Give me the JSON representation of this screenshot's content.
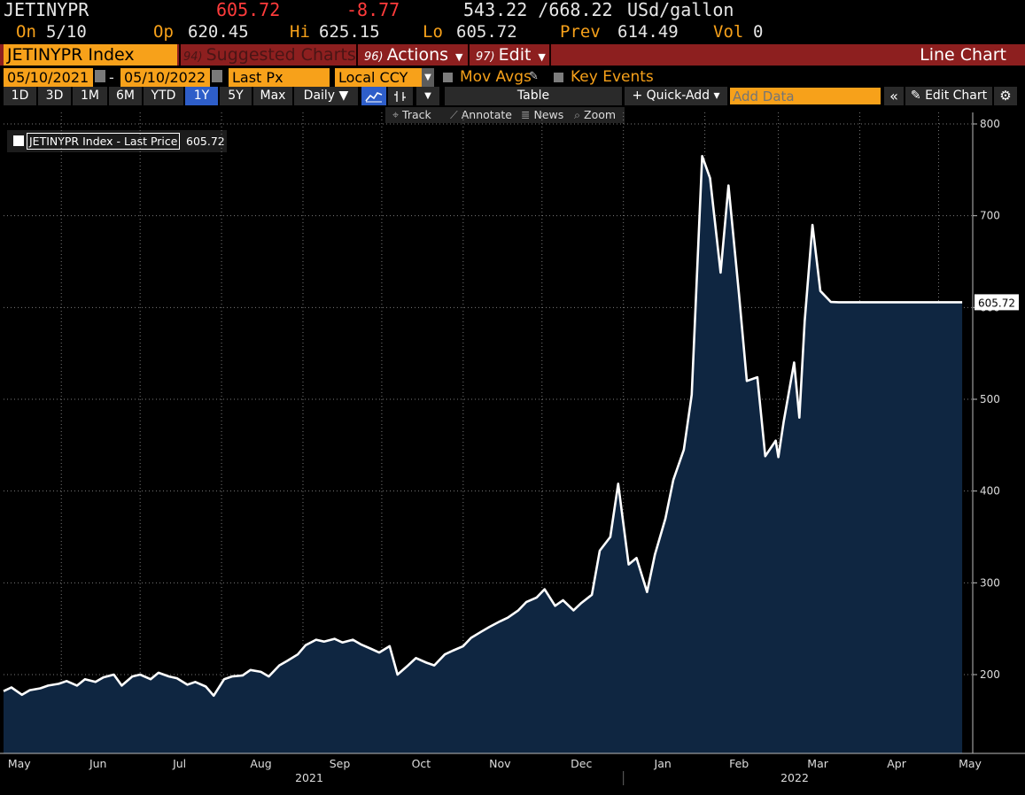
{
  "quote": {
    "ticker": "JETINYPR",
    "last": "605.72",
    "change": "-8.77",
    "range": "543.22 /668.22",
    "unit": "USd/gallon",
    "on_label": "On",
    "on_date": "5/10",
    "op_label": "Op",
    "op": "620.45",
    "hi_label": "Hi",
    "hi": "625.15",
    "lo_label": "Lo",
    "lo": "605.72",
    "prev_label": "Prev",
    "prev": "614.49",
    "vol_label": "Vol",
    "vol": "0"
  },
  "menu": {
    "security": "JETINYPR Index",
    "suggested_num": "94)",
    "suggested": "Suggested Charts",
    "actions_num": "96)",
    "actions": "Actions",
    "edit_num": "97)",
    "edit": "Edit",
    "chart_type": "Line Chart"
  },
  "controls": {
    "start_date": "05/10/2021",
    "end_date": "05/10/2022",
    "date_sep": "-",
    "field": "Last Px",
    "currency": "Local CCY",
    "mov_avgs": "Mov Avgs",
    "key_events": "Key Events"
  },
  "toolbar": {
    "periods": [
      "1D",
      "3D",
      "1M",
      "6M",
      "YTD",
      "1Y",
      "5Y",
      "Max"
    ],
    "selected_period": "1Y",
    "frequency": "Daily ▼",
    "table": "Table",
    "quick_add": "+ Quick-Add ▾",
    "add_data_placeholder": "Add Data",
    "collapse": "«",
    "edit_chart": "✎ Edit Chart",
    "settings": "⚙"
  },
  "subtools": {
    "track": "Track",
    "annotate": "Annotate",
    "news": "News",
    "zoom": "Zoom"
  },
  "legend": {
    "label": "JETINYPR Index - Last Price",
    "value": "605.72"
  },
  "chart_data": {
    "type": "area",
    "series": [
      {
        "name": "JETINYPR Index - Last Price",
        "x": [
          "2021-05-10",
          "2021-05-13",
          "2021-05-17",
          "2021-05-20",
          "2021-05-24",
          "2021-05-27",
          "2021-05-31",
          "2021-06-03",
          "2021-06-07",
          "2021-06-10",
          "2021-06-14",
          "2021-06-17",
          "2021-06-21",
          "2021-06-24",
          "2021-06-28",
          "2021-07-01",
          "2021-07-05",
          "2021-07-08",
          "2021-07-12",
          "2021-07-15",
          "2021-07-19",
          "2021-07-22",
          "2021-07-26",
          "2021-07-29",
          "2021-08-02",
          "2021-08-05",
          "2021-08-09",
          "2021-08-12",
          "2021-08-16",
          "2021-08-19",
          "2021-08-23",
          "2021-08-26",
          "2021-08-30",
          "2021-09-02",
          "2021-09-06",
          "2021-09-09",
          "2021-09-13",
          "2021-09-16",
          "2021-09-20",
          "2021-09-23",
          "2021-09-27",
          "2021-09-30",
          "2021-10-04",
          "2021-10-07",
          "2021-10-11",
          "2021-10-14",
          "2021-10-18",
          "2021-10-21",
          "2021-10-25",
          "2021-10-28",
          "2021-11-01",
          "2021-11-04",
          "2021-11-08",
          "2021-11-11",
          "2021-11-15",
          "2021-11-18",
          "2021-11-22",
          "2021-11-25",
          "2021-11-29",
          "2021-12-02",
          "2021-12-06",
          "2021-12-09",
          "2021-12-13",
          "2021-12-16",
          "2021-12-20",
          "2021-12-23",
          "2021-12-27",
          "2021-12-30",
          "2022-01-03",
          "2022-01-06",
          "2022-01-10",
          "2022-01-13",
          "2022-01-17",
          "2022-01-20",
          "2022-01-24",
          "2022-01-27",
          "2022-01-31",
          "2022-02-03",
          "2022-02-07",
          "2022-02-10",
          "2022-02-14",
          "2022-02-17",
          "2022-02-21",
          "2022-02-24",
          "2022-02-28",
          "2022-03-01",
          "2022-03-03",
          "2022-03-07",
          "2022-03-09",
          "2022-03-11",
          "2022-03-14",
          "2022-03-17",
          "2022-03-21",
          "2022-03-24",
          "2022-03-28",
          "2022-03-31",
          "2022-04-01",
          "2022-04-04",
          "2022-04-07",
          "2022-04-11",
          "2022-04-14",
          "2022-04-18",
          "2022-04-21",
          "2022-04-25",
          "2022-04-28",
          "2022-05-02",
          "2022-05-04",
          "2022-05-06",
          "2022-05-10"
        ],
        "values": [
          182,
          186,
          178,
          183,
          185,
          188,
          190,
          193,
          188,
          195,
          192,
          197,
          200,
          188,
          198,
          200,
          195,
          202,
          198,
          196,
          189,
          192,
          187,
          177,
          195,
          198,
          199,
          205,
          203,
          198,
          210,
          215,
          222,
          232,
          238,
          236,
          239,
          235,
          238,
          233,
          228,
          224,
          231,
          200,
          210,
          218,
          213,
          210,
          222,
          226,
          231,
          240,
          247,
          252,
          258,
          262,
          270,
          279,
          284,
          293,
          275,
          281,
          270,
          278,
          287,
          335,
          350,
          408,
          320,
          327,
          290,
          331,
          370,
          412,
          445,
          505,
          765,
          741,
          638,
          733,
          615,
          520,
          524,
          438,
          455,
          437,
          475,
          540,
          480,
          585,
          690,
          618,
          606,
          605.72,
          605.72,
          605.72,
          605.72,
          605.72,
          605.72,
          605.72,
          605.72,
          605.72,
          605.72,
          605.72,
          605.72,
          605.72,
          605.72,
          605.72,
          605.72
        ]
      }
    ],
    "ylim": [
      120,
      810
    ],
    "yticks": [
      200,
      300,
      400,
      500,
      600,
      700,
      800
    ],
    "month_labels": [
      "May",
      "Jun",
      "Jul",
      "Aug",
      "Sep",
      "Oct",
      "Nov",
      "Dec",
      "Jan",
      "Feb",
      "Mar",
      "Apr",
      "May"
    ],
    "year_labels": [
      "2021",
      "2022"
    ],
    "last_value_label": "605.72",
    "grid": true,
    "line_color": "#ffffff",
    "fill_color": "#0f2641",
    "legend_position": "top-left"
  }
}
